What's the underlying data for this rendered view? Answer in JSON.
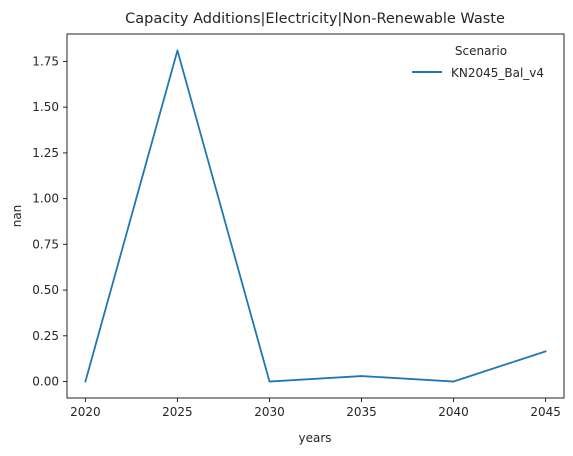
{
  "chart_data": {
    "type": "line",
    "title": "Capacity Additions|Electricity|Non-Renewable Waste",
    "xlabel": "years",
    "ylabel": "nan",
    "x": [
      2020,
      2025,
      2030,
      2035,
      2040,
      2045
    ],
    "series": [
      {
        "name": "KN2045_Bal_v4",
        "color": "#1f77b4",
        "values": [
          0.0,
          1.81,
          0.0,
          0.03,
          0.0,
          0.165
        ]
      }
    ],
    "xticks": [
      "2020",
      "2025",
      "2030",
      "2035",
      "2040",
      "2045"
    ],
    "yticks": [
      "0.00",
      "0.25",
      "0.50",
      "0.75",
      "1.00",
      "1.25",
      "1.50",
      "1.75"
    ],
    "xlim": [
      2019,
      2046
    ],
    "ylim": [
      -0.09,
      1.9
    ],
    "grid": false,
    "legend": {
      "title": "Scenario",
      "placement": "top-right"
    }
  }
}
